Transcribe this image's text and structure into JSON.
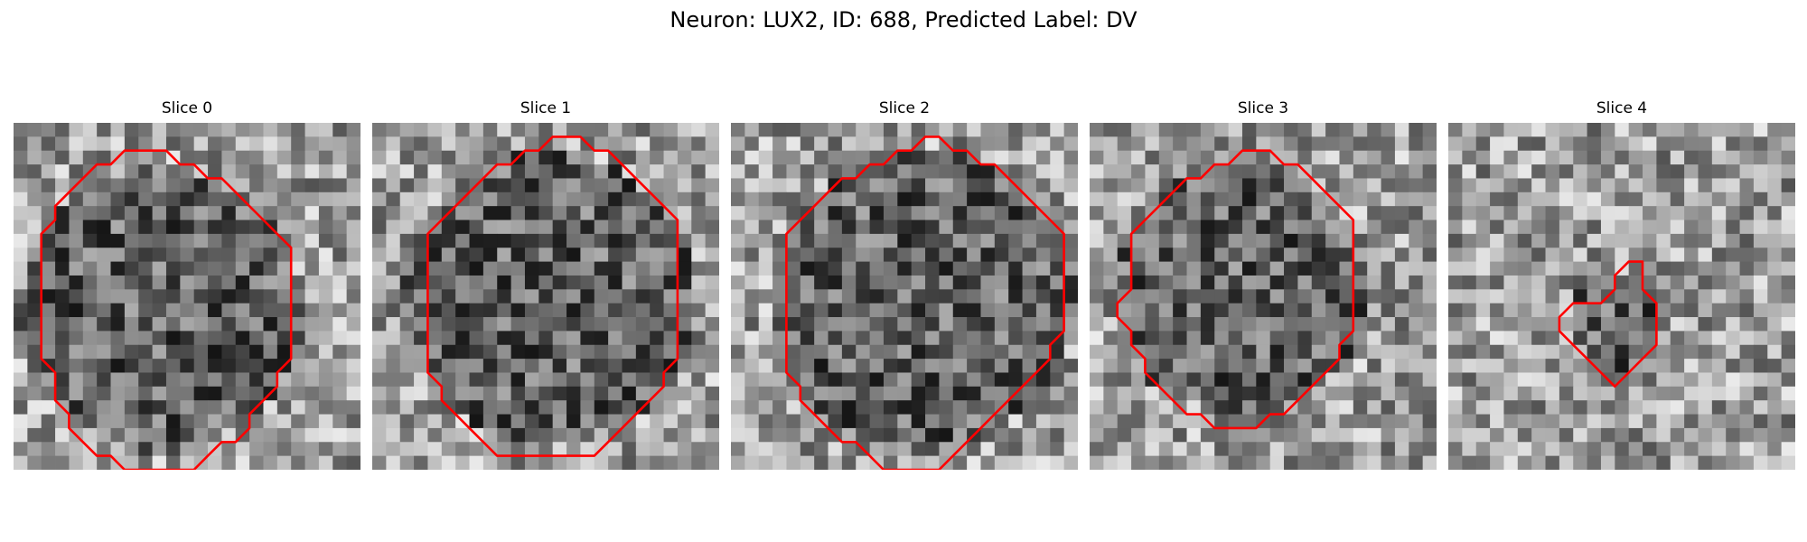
{
  "figure": {
    "title": "Neuron: LUX2, ID: 688, Predicted Label: DV"
  },
  "panels": [
    {
      "title": "Slice 0",
      "outline": [
        [
          9,
          2
        ],
        [
          11,
          2
        ],
        [
          12,
          3
        ],
        [
          13,
          3
        ],
        [
          14,
          4
        ],
        [
          15,
          4
        ],
        [
          16,
          5
        ],
        [
          17,
          6
        ],
        [
          18,
          7
        ],
        [
          19,
          8
        ],
        [
          20,
          9
        ],
        [
          20,
          10
        ],
        [
          20,
          11
        ],
        [
          20,
          12
        ],
        [
          20,
          13
        ],
        [
          20,
          14
        ],
        [
          20,
          15
        ],
        [
          20,
          16
        ],
        [
          20,
          17
        ],
        [
          19,
          18
        ],
        [
          19,
          19
        ],
        [
          18,
          20
        ],
        [
          17,
          21
        ],
        [
          17,
          22
        ],
        [
          16,
          23
        ],
        [
          15,
          23
        ],
        [
          14,
          24
        ],
        [
          13,
          25
        ],
        [
          11,
          25
        ],
        [
          9,
          25
        ],
        [
          8,
          25
        ],
        [
          7,
          24
        ],
        [
          6,
          24
        ],
        [
          5,
          23
        ],
        [
          4,
          22
        ],
        [
          4,
          21
        ],
        [
          3,
          20
        ],
        [
          3,
          19
        ],
        [
          3,
          18
        ],
        [
          2,
          17
        ],
        [
          2,
          16
        ],
        [
          2,
          15
        ],
        [
          2,
          14
        ],
        [
          2,
          13
        ],
        [
          2,
          12
        ],
        [
          2,
          11
        ],
        [
          2,
          10
        ],
        [
          2,
          9
        ],
        [
          2,
          8
        ],
        [
          3,
          7
        ],
        [
          3,
          6
        ],
        [
          4,
          5
        ],
        [
          5,
          4
        ],
        [
          6,
          3
        ],
        [
          7,
          3
        ],
        [
          8,
          2
        ]
      ],
      "seed": 11
    },
    {
      "title": "Slice 1",
      "outline": [
        [
          13,
          1
        ],
        [
          15,
          1
        ],
        [
          16,
          2
        ],
        [
          17,
          2
        ],
        [
          18,
          3
        ],
        [
          19,
          4
        ],
        [
          20,
          5
        ],
        [
          21,
          6
        ],
        [
          22,
          7
        ],
        [
          22,
          9
        ],
        [
          22,
          11
        ],
        [
          22,
          13
        ],
        [
          22,
          15
        ],
        [
          22,
          17
        ],
        [
          21,
          18
        ],
        [
          21,
          19
        ],
        [
          20,
          20
        ],
        [
          19,
          21
        ],
        [
          18,
          22
        ],
        [
          17,
          23
        ],
        [
          16,
          24
        ],
        [
          14,
          24
        ],
        [
          12,
          24
        ],
        [
          10,
          24
        ],
        [
          9,
          24
        ],
        [
          8,
          23
        ],
        [
          7,
          22
        ],
        [
          6,
          21
        ],
        [
          5,
          20
        ],
        [
          5,
          19
        ],
        [
          4,
          18
        ],
        [
          4,
          17
        ],
        [
          4,
          15
        ],
        [
          4,
          13
        ],
        [
          4,
          11
        ],
        [
          4,
          9
        ],
        [
          4,
          8
        ],
        [
          5,
          7
        ],
        [
          6,
          6
        ],
        [
          7,
          5
        ],
        [
          8,
          4
        ],
        [
          9,
          3
        ],
        [
          10,
          3
        ],
        [
          11,
          2
        ],
        [
          12,
          2
        ]
      ],
      "seed": 23
    },
    {
      "title": "Slice 2",
      "outline": [
        [
          14,
          1
        ],
        [
          15,
          1
        ],
        [
          16,
          2
        ],
        [
          17,
          2
        ],
        [
          18,
          3
        ],
        [
          19,
          3
        ],
        [
          20,
          4
        ],
        [
          21,
          5
        ],
        [
          22,
          6
        ],
        [
          23,
          7
        ],
        [
          24,
          8
        ],
        [
          24,
          10
        ],
        [
          24,
          12
        ],
        [
          24,
          14
        ],
        [
          24,
          15
        ],
        [
          23,
          16
        ],
        [
          23,
          17
        ],
        [
          22,
          18
        ],
        [
          21,
          19
        ],
        [
          20,
          20
        ],
        [
          19,
          21
        ],
        [
          18,
          22
        ],
        [
          17,
          23
        ],
        [
          16,
          24
        ],
        [
          15,
          25
        ],
        [
          13,
          25
        ],
        [
          12,
          25
        ],
        [
          11,
          25
        ],
        [
          10,
          24
        ],
        [
          9,
          23
        ],
        [
          8,
          23
        ],
        [
          7,
          22
        ],
        [
          6,
          21
        ],
        [
          5,
          20
        ],
        [
          5,
          19
        ],
        [
          4,
          18
        ],
        [
          4,
          16
        ],
        [
          4,
          14
        ],
        [
          4,
          12
        ],
        [
          4,
          10
        ],
        [
          4,
          8
        ],
        [
          5,
          7
        ],
        [
          6,
          6
        ],
        [
          7,
          5
        ],
        [
          8,
          4
        ],
        [
          9,
          4
        ],
        [
          10,
          3
        ],
        [
          11,
          3
        ],
        [
          12,
          2
        ],
        [
          13,
          2
        ]
      ],
      "seed": 37
    },
    {
      "title": "Slice 3",
      "outline": [
        [
          11,
          2
        ],
        [
          12,
          2
        ],
        [
          13,
          2
        ],
        [
          14,
          3
        ],
        [
          15,
          3
        ],
        [
          16,
          4
        ],
        [
          17,
          5
        ],
        [
          18,
          6
        ],
        [
          19,
          7
        ],
        [
          19,
          8
        ],
        [
          19,
          10
        ],
        [
          19,
          12
        ],
        [
          19,
          14
        ],
        [
          19,
          15
        ],
        [
          18,
          16
        ],
        [
          18,
          17
        ],
        [
          17,
          18
        ],
        [
          16,
          19
        ],
        [
          15,
          20
        ],
        [
          14,
          21
        ],
        [
          13,
          21
        ],
        [
          12,
          22
        ],
        [
          10,
          22
        ],
        [
          9,
          22
        ],
        [
          8,
          21
        ],
        [
          7,
          21
        ],
        [
          6,
          20
        ],
        [
          5,
          19
        ],
        [
          4,
          18
        ],
        [
          4,
          17
        ],
        [
          3,
          16
        ],
        [
          3,
          15
        ],
        [
          2,
          14
        ],
        [
          2,
          13
        ],
        [
          3,
          12
        ],
        [
          3,
          10
        ],
        [
          3,
          8
        ],
        [
          4,
          7
        ],
        [
          5,
          6
        ],
        [
          6,
          5
        ],
        [
          7,
          4
        ],
        [
          8,
          4
        ],
        [
          9,
          3
        ],
        [
          10,
          3
        ]
      ],
      "seed": 53
    },
    {
      "title": "Slice 4",
      "outline": [
        [
          13,
          10
        ],
        [
          14,
          10
        ],
        [
          14,
          11
        ],
        [
          14,
          12
        ],
        [
          15,
          13
        ],
        [
          15,
          14
        ],
        [
          15,
          15
        ],
        [
          15,
          16
        ],
        [
          14,
          17
        ],
        [
          13,
          18
        ],
        [
          12,
          19
        ],
        [
          11,
          18
        ],
        [
          10,
          17
        ],
        [
          9,
          16
        ],
        [
          8,
          15
        ],
        [
          8,
          14
        ],
        [
          9,
          13
        ],
        [
          10,
          13
        ],
        [
          11,
          13
        ],
        [
          12,
          12
        ],
        [
          12,
          11
        ]
      ],
      "seed": 71
    }
  ]
}
